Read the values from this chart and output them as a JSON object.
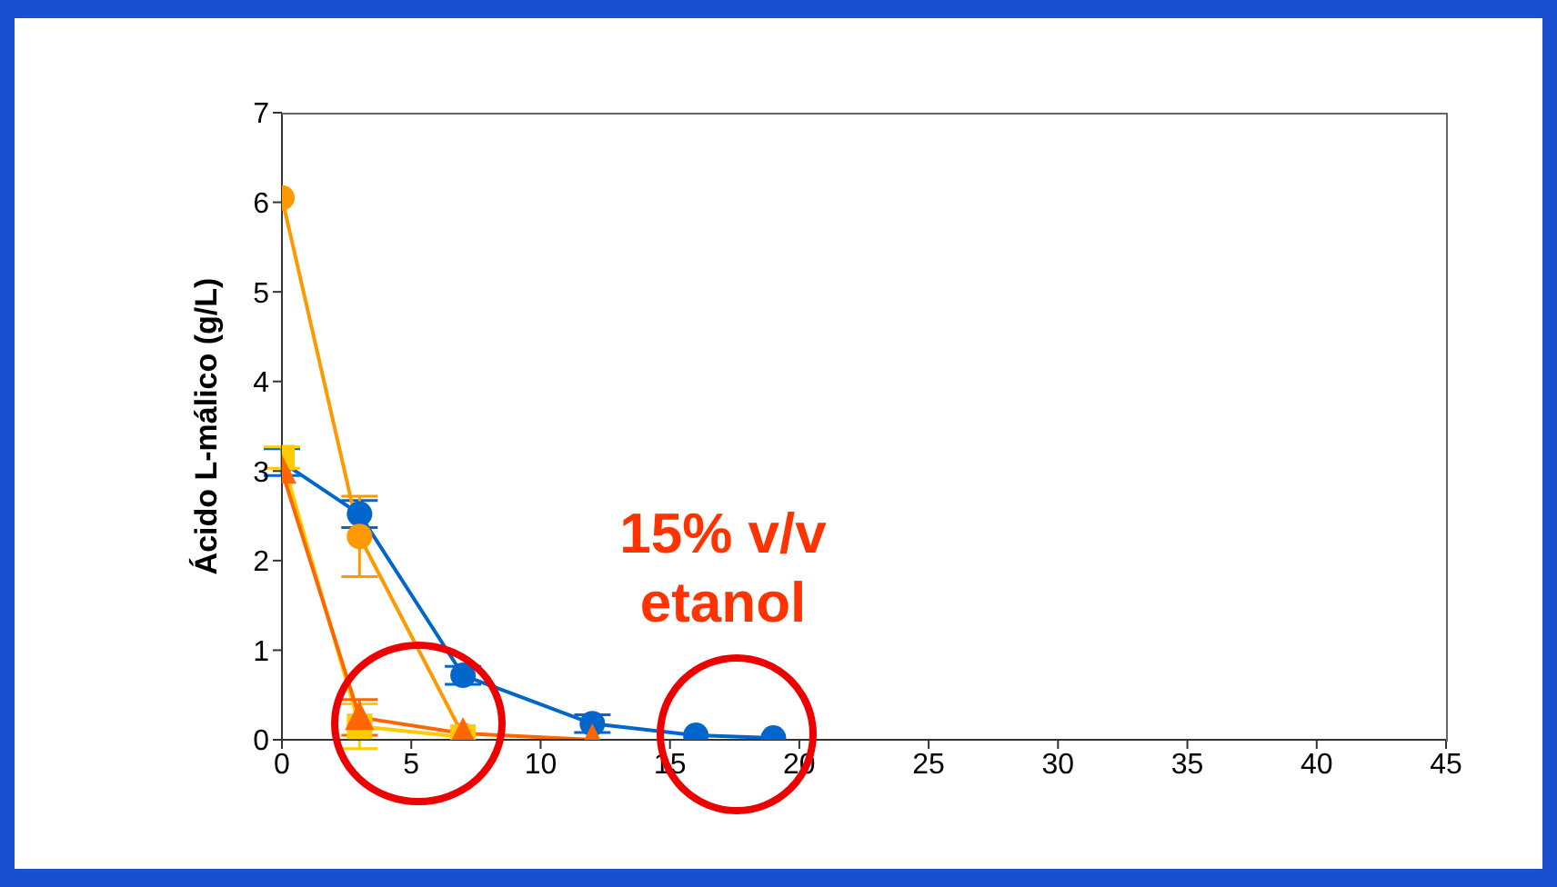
{
  "chart_data": {
    "type": "line",
    "ylabel": "Ácido L-málico (g/L)",
    "xlim": [
      0,
      45
    ],
    "xticks": [
      0,
      5,
      10,
      15,
      20,
      25,
      30,
      35,
      40,
      45
    ],
    "ylim": [
      0,
      7
    ],
    "yticks": [
      0,
      1,
      2,
      3,
      4,
      5,
      6,
      7
    ],
    "grid": false,
    "legend": false,
    "annotations": [
      "15% v/v\netanol"
    ],
    "series": [
      {
        "color": "#0066cc",
        "marker": "circle",
        "x": [
          0,
          3,
          7,
          12,
          16,
          19
        ],
        "values": [
          3.1,
          2.52,
          0.72,
          0.18,
          0.05,
          0.02
        ],
        "errors": [
          0.15,
          0.15,
          0.1,
          0.1,
          null,
          null
        ]
      },
      {
        "color": "#ff9900",
        "marker": "circle",
        "x": [
          0,
          3,
          7
        ],
        "values": [
          6.05,
          2.27,
          0.05
        ],
        "errors": [
          null,
          0.45,
          null
        ]
      },
      {
        "color": "#ffcc00",
        "marker": "square",
        "x": [
          0,
          3,
          7
        ],
        "values": [
          3.15,
          0.15,
          0.03
        ],
        "errors": [
          0.12,
          0.25,
          null
        ]
      },
      {
        "color": "#ff6600",
        "marker": "triangle",
        "x": [
          0,
          3,
          7,
          12
        ],
        "values": [
          3.0,
          0.25,
          0.07,
          0.0
        ],
        "errors": [
          null,
          0.2,
          null,
          null
        ]
      }
    ]
  }
}
